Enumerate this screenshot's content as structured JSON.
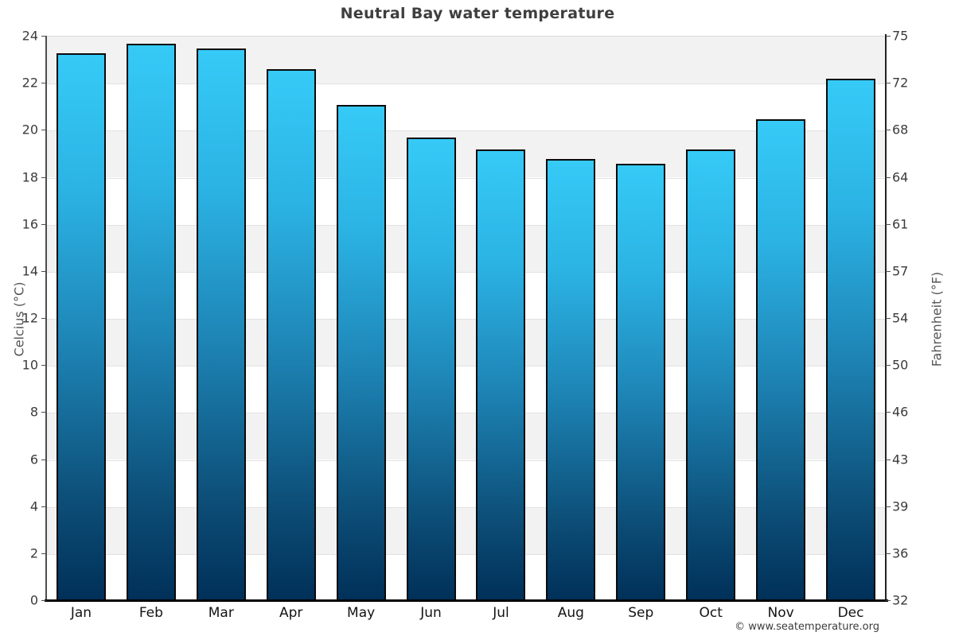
{
  "title": "Neutral Bay water temperature",
  "chart_data": {
    "type": "bar",
    "title": "Neutral Bay water temperature",
    "categories": [
      "Jan",
      "Feb",
      "Mar",
      "Apr",
      "May",
      "Jun",
      "Jul",
      "Aug",
      "Sep",
      "Oct",
      "Nov",
      "Dec"
    ],
    "values": [
      23.3,
      23.7,
      23.5,
      22.6,
      21.1,
      19.7,
      19.2,
      18.8,
      18.6,
      19.2,
      20.5,
      22.2
    ],
    "xlabel": "",
    "ylabel_left": "Celcius (°C)",
    "ylabel_right": "Fahrenheit (°F)",
    "ylim": [
      0,
      24
    ],
    "yticks_celsius": [
      24,
      22,
      20,
      18,
      16,
      14,
      12,
      10,
      8,
      6,
      4,
      2,
      0
    ],
    "yticks_fahrenheit": [
      "75",
      "72",
      "68",
      "64",
      "61",
      "57",
      "54",
      "50",
      "46",
      "43",
      "39",
      "36",
      "32"
    ],
    "grid": "horizontal-bands-alternating",
    "legend": "none",
    "colors": {
      "bar_gradient_top": "#36caf7",
      "bar_gradient_mid": "#1e86b7",
      "bar_gradient_bottom": "#003059",
      "bar_border": "#0a0a0a",
      "band_gray": "#f2f2f2",
      "band_white": "#ffffff",
      "gridline": "#e2e2e2",
      "title_text": "#3e3e3e",
      "tick_text": "#3b3b3b",
      "axis_label_text": "#555555"
    }
  },
  "footer": {
    "copyright": "© www.seatemperature.org"
  }
}
